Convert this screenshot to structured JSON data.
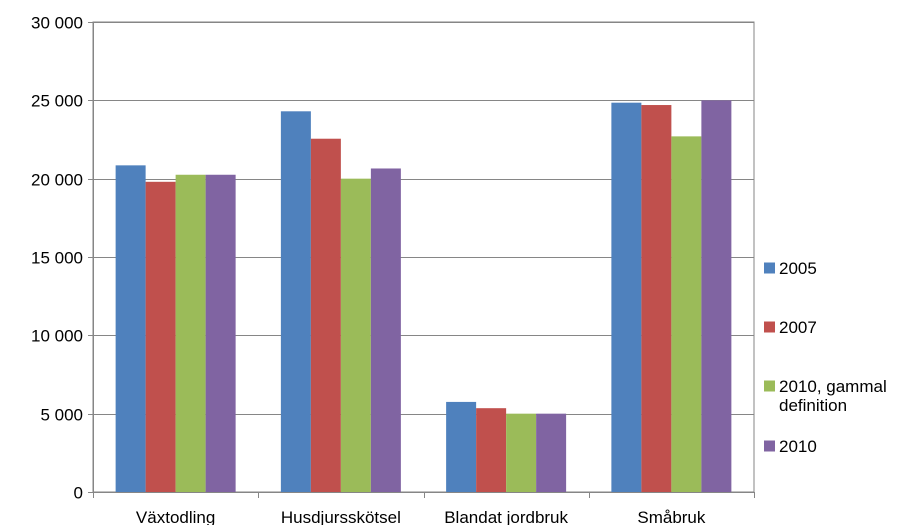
{
  "chart_data": {
    "type": "bar",
    "categories": [
      "Växtodling",
      "Husdjursskötsel",
      "Blandat jordbruk",
      "Småbruk"
    ],
    "series": [
      {
        "name": "2005",
        "color": "#4F81BD",
        "values": [
          20850,
          24300,
          5750,
          24850
        ]
      },
      {
        "name": "2007",
        "color": "#C0504D",
        "values": [
          19800,
          22550,
          5350,
          24700
        ]
      },
      {
        "name": "2010, gammal definition",
        "legend_lines": [
          "2010, gammal",
          "definition"
        ],
        "color": "#9BBB59",
        "values": [
          20250,
          20000,
          5000,
          22700
        ]
      },
      {
        "name": "2010",
        "color": "#8064A2",
        "values": [
          20250,
          20650,
          5000,
          25000
        ]
      }
    ],
    "ylim": [
      0,
      30000
    ],
    "yticks": [
      0,
      5000,
      10000,
      15000,
      20000,
      25000,
      30000
    ],
    "ytick_labels": [
      "0",
      "5 000",
      "10 000",
      "15 000",
      "20 000",
      "25 000",
      "30 000"
    ],
    "grid": true,
    "legend_position": "right",
    "title": "",
    "xlabel": "",
    "ylabel": ""
  }
}
